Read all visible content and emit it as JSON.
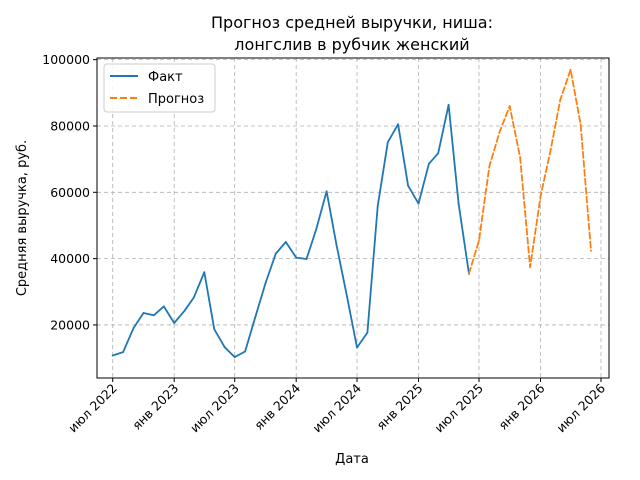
{
  "chart_data": {
    "type": "line",
    "title_lines": [
      "Прогноз средней выручки, ниша:",
      "лонгслив в рубчик женский"
    ],
    "xlabel": "Дата",
    "ylabel": "Средняя выручка, руб.",
    "xlim": [
      "2022-05-15",
      "2026-07-25"
    ],
    "ylim": [
      4000,
      100500
    ],
    "x_ticks": [
      {
        "date": "2022-07-01",
        "label": "июл 2022"
      },
      {
        "date": "2023-01-01",
        "label": "янв 2023"
      },
      {
        "date": "2023-07-01",
        "label": "июл 2023"
      },
      {
        "date": "2024-01-01",
        "label": "янв 2024"
      },
      {
        "date": "2024-07-01",
        "label": "июл 2024"
      },
      {
        "date": "2025-01-01",
        "label": "янв 2025"
      },
      {
        "date": "2025-07-01",
        "label": "июл 2025"
      },
      {
        "date": "2026-01-01",
        "label": "янв 2026"
      },
      {
        "date": "2026-07-01",
        "label": "июл 2026"
      }
    ],
    "y_ticks": [
      {
        "value": 20000,
        "label": "20000"
      },
      {
        "value": 40000,
        "label": "40000"
      },
      {
        "value": 60000,
        "label": "60000"
      },
      {
        "value": 80000,
        "label": "80000"
      },
      {
        "value": 100000,
        "label": "100000"
      }
    ],
    "grid": true,
    "legend_position": "top-left",
    "series": [
      {
        "name": "Факт",
        "color": "#1f77b4",
        "style": "solid",
        "points": [
          {
            "x": "2022-07-01",
            "y": 10800
          },
          {
            "x": "2022-08-01",
            "y": 11800
          },
          {
            "x": "2022-09-01",
            "y": 19000
          },
          {
            "x": "2022-10-01",
            "y": 23600
          },
          {
            "x": "2022-11-01",
            "y": 22900
          },
          {
            "x": "2022-12-01",
            "y": 25600
          },
          {
            "x": "2023-01-01",
            "y": 20600
          },
          {
            "x": "2023-02-01",
            "y": 24300
          },
          {
            "x": "2023-03-01",
            "y": 28300
          },
          {
            "x": "2023-04-01",
            "y": 35900
          },
          {
            "x": "2023-05-01",
            "y": 18700
          },
          {
            "x": "2023-06-01",
            "y": 13300
          },
          {
            "x": "2023-07-01",
            "y": 10300
          },
          {
            "x": "2023-08-01",
            "y": 12000
          },
          {
            "x": "2023-09-01",
            "y": 22500
          },
          {
            "x": "2023-10-01",
            "y": 32500
          },
          {
            "x": "2023-11-01",
            "y": 41500
          },
          {
            "x": "2023-12-01",
            "y": 45000
          },
          {
            "x": "2024-01-01",
            "y": 40300
          },
          {
            "x": "2024-02-01",
            "y": 39900
          },
          {
            "x": "2024-03-01",
            "y": 48800
          },
          {
            "x": "2024-04-01",
            "y": 60300
          },
          {
            "x": "2024-05-01",
            "y": 44000
          },
          {
            "x": "2024-06-01",
            "y": 28600
          },
          {
            "x": "2024-07-01",
            "y": 13200
          },
          {
            "x": "2024-08-01",
            "y": 17700
          },
          {
            "x": "2024-09-01",
            "y": 55800
          },
          {
            "x": "2024-10-01",
            "y": 75100
          },
          {
            "x": "2024-11-01",
            "y": 80500
          },
          {
            "x": "2024-12-01",
            "y": 62000
          },
          {
            "x": "2025-01-01",
            "y": 56600
          },
          {
            "x": "2025-02-01",
            "y": 68600
          },
          {
            "x": "2025-03-01",
            "y": 71800
          },
          {
            "x": "2025-04-01",
            "y": 86400
          },
          {
            "x": "2025-05-01",
            "y": 56600
          },
          {
            "x": "2025-06-01",
            "y": 35400
          }
        ]
      },
      {
        "name": "Прогноз",
        "color": "#ff7f0e",
        "style": "dashed",
        "points": [
          {
            "x": "2025-06-01",
            "y": 35500
          },
          {
            "x": "2025-07-01",
            "y": 45400
          },
          {
            "x": "2025-08-01",
            "y": 67900
          },
          {
            "x": "2025-09-01",
            "y": 78300
          },
          {
            "x": "2025-10-01",
            "y": 86000
          },
          {
            "x": "2025-11-01",
            "y": 70600
          },
          {
            "x": "2025-12-01",
            "y": 37400
          },
          {
            "x": "2026-01-01",
            "y": 58700
          },
          {
            "x": "2026-02-01",
            "y": 73000
          },
          {
            "x": "2026-03-01",
            "y": 87800
          },
          {
            "x": "2026-04-01",
            "y": 97000
          },
          {
            "x": "2026-05-01",
            "y": 80500
          },
          {
            "x": "2026-06-01",
            "y": 42400
          }
        ]
      }
    ]
  }
}
